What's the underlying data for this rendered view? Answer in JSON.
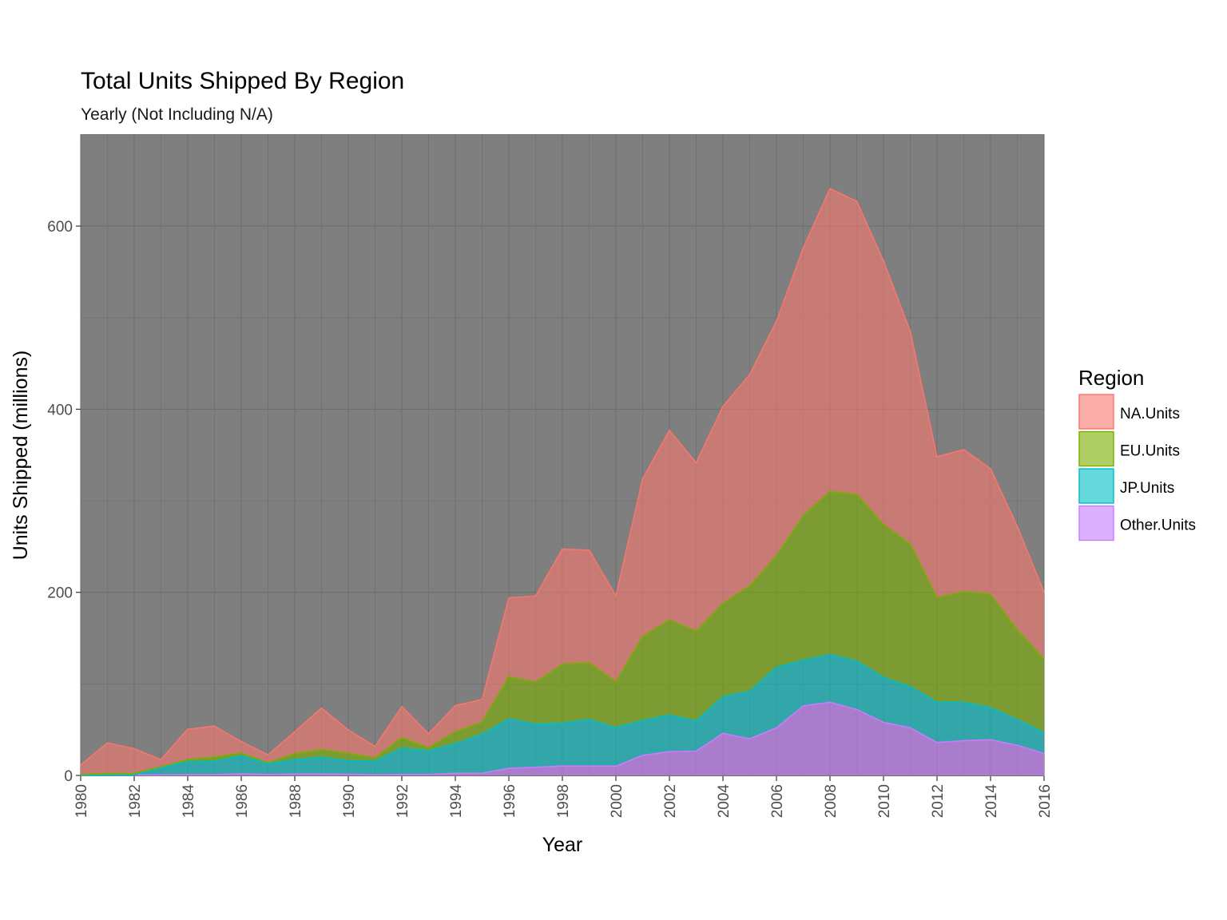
{
  "chart_data": {
    "type": "area",
    "stacked": true,
    "title": "Total Units Shipped By Region",
    "subtitle": "Yearly (Not Including N/A)",
    "xlabel": "Year",
    "ylabel": "Units Shipped (millions)",
    "xlim": [
      1980,
      2016
    ],
    "ylim": [
      0,
      700
    ],
    "x_ticks": [
      1980,
      1982,
      1984,
      1986,
      1988,
      1990,
      1992,
      1994,
      1996,
      1998,
      2000,
      2002,
      2004,
      2006,
      2008,
      2010,
      2012,
      2014,
      2016
    ],
    "y_ticks": [
      0,
      200,
      400,
      600
    ],
    "grid": true,
    "legend": {
      "title": "Region",
      "position": "right"
    },
    "x": [
      1980,
      1981,
      1982,
      1983,
      1984,
      1985,
      1986,
      1987,
      1988,
      1989,
      1990,
      1991,
      1992,
      1993,
      1994,
      1995,
      1996,
      1997,
      1998,
      1999,
      2000,
      2001,
      2002,
      2003,
      2004,
      2005,
      2006,
      2007,
      2008,
      2009,
      2010,
      2011,
      2012,
      2013,
      2014,
      2015,
      2016
    ],
    "series": [
      {
        "name": "Other.Units",
        "color": "#C77CFF",
        "values": [
          0.1,
          0.3,
          0.6,
          0.6,
          0.8,
          0.9,
          1.7,
          1.0,
          1.5,
          1.5,
          1.3,
          0.7,
          1.0,
          1.1,
          2.3,
          2.5,
          7.8,
          9.0,
          10.3,
          10.2,
          10.2,
          22.0,
          26.0,
          26.5,
          46.0,
          40.0,
          52.0,
          76.0,
          80.0,
          72.0,
          58.0,
          52.0,
          36.0,
          38.0,
          39.0,
          33.0,
          24.0
        ]
      },
      {
        "name": "JP.Units",
        "color": "#00BFC4",
        "values": [
          0.0,
          0.0,
          0.0,
          8.1,
          14.3,
          14.6,
          19.8,
          11.6,
          15.8,
          18.4,
          14.9,
          15.0,
          28.8,
          25.7,
          32.5,
          42.7,
          54.0,
          47.0,
          47.0,
          50.9,
          42.0,
          38.0,
          40.0,
          33.0,
          40.0,
          52.0,
          66.0,
          50.0,
          52.0,
          53.0,
          49.0,
          45.0,
          44.0,
          42.0,
          35.0,
          28.0,
          23.0
        ]
      },
      {
        "name": "EU.Units",
        "color": "#7CAE00",
        "values": [
          0.7,
          1.9,
          1.7,
          0.8,
          2.1,
          4.7,
          3.0,
          1.4,
          6.6,
          8.4,
          8.0,
          3.6,
          11.5,
          3.6,
          13.2,
          13.0,
          46.0,
          46.0,
          64.0,
          62.0,
          50.0,
          92.0,
          104.0,
          98.0,
          102.0,
          115.0,
          122.0,
          158.0,
          178.0,
          182.0,
          167.0,
          156.0,
          114.0,
          121.0,
          124.0,
          98.0,
          80.0
        ]
      },
      {
        "name": "NA.Units",
        "color": "#F8766D",
        "values": [
          10.6,
          33.4,
          26.9,
          7.8,
          33.3,
          33.7,
          12.5,
          8.5,
          23.9,
          45.3,
          25.5,
          12.4,
          33.9,
          15.1,
          28.2,
          24.8,
          86.2,
          94.0,
          126.0,
          123.0,
          94.0,
          172.0,
          207.0,
          184.0,
          215.0,
          231.0,
          256.0,
          292.0,
          331.0,
          320.0,
          288.0,
          232.0,
          154.0,
          155.0,
          137.0,
          113.0,
          73.0
        ]
      }
    ],
    "legend_order": [
      "NA.Units",
      "EU.Units",
      "JP.Units",
      "Other.Units"
    ]
  }
}
